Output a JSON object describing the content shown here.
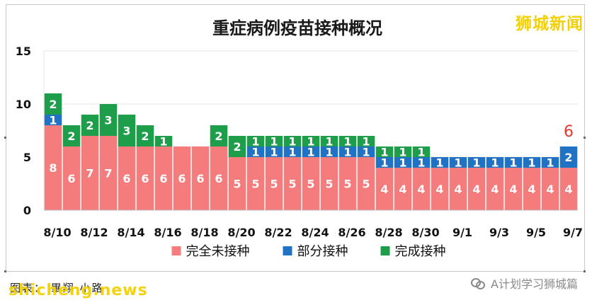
{
  "chart_data": {
    "type": "bar",
    "stacked": true,
    "title": "重症病例疫苗接种概况",
    "xlabel": "",
    "ylabel": "",
    "ylim": [
      0,
      15
    ],
    "yticks": [
      0,
      5,
      10,
      15
    ],
    "grid": true,
    "legend_position": "bottom",
    "tick_labels": [
      "8/10",
      "8/12",
      "8/14",
      "8/16",
      "8/18",
      "8/20",
      "8/22",
      "8/24",
      "8/26",
      "8/28",
      "8/30",
      "9/1",
      "9/3",
      "9/5",
      "9/7"
    ],
    "categories": [
      "8/10",
      "8/11",
      "8/12",
      "8/13",
      "8/14",
      "8/15",
      "8/16",
      "8/17",
      "8/18",
      "8/19",
      "8/20",
      "8/21",
      "8/22",
      "8/23",
      "8/24",
      "8/25",
      "8/26",
      "8/27",
      "8/28",
      "8/29",
      "8/30",
      "8/31",
      "9/1",
      "9/2",
      "9/3",
      "9/4",
      "9/5",
      "9/6",
      "9/7"
    ],
    "series": [
      {
        "name": "完全未接种",
        "color": "#f47c7c",
        "values": [
          8,
          6,
          7,
          7,
          6,
          6,
          6,
          6,
          6,
          6,
          5,
          5,
          5,
          5,
          5,
          5,
          5,
          5,
          4,
          4,
          4,
          4,
          4,
          4,
          4,
          4,
          4,
          4,
          4
        ]
      },
      {
        "name": "部分接种",
        "color": "#1f72c4",
        "values": [
          1,
          0,
          0,
          0,
          0,
          0,
          0,
          0,
          0,
          0,
          0,
          1,
          1,
          1,
          1,
          1,
          1,
          1,
          1,
          1,
          1,
          1,
          1,
          1,
          1,
          1,
          1,
          1,
          2
        ]
      },
      {
        "name": "完成接种",
        "color": "#1e9e4a",
        "values": [
          2,
          2,
          2,
          3,
          3,
          2,
          1,
          0,
          0,
          2,
          2,
          1,
          1,
          1,
          1,
          1,
          1,
          1,
          1,
          1,
          1,
          0,
          0,
          0,
          0,
          0,
          0,
          0,
          0
        ]
      }
    ],
    "annotations": [
      {
        "category": "9/7",
        "text": "6",
        "color": "#e8382c"
      }
    ]
  },
  "branding": {
    "watermark_top": "狮城新闻",
    "site": "shicheng.news",
    "caption": "图表： 畢翔 小路",
    "account": "A计划学习狮城篇"
  }
}
